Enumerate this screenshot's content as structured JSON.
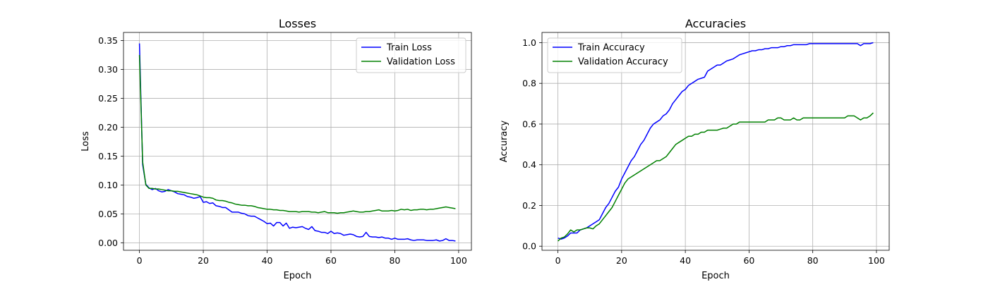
{
  "chart_data": [
    {
      "type": "line",
      "title": "Losses",
      "xlabel": "Epoch",
      "ylabel": "Loss",
      "xlim": [
        -5,
        104
      ],
      "ylim": [
        -0.013,
        0.364
      ],
      "xticks": [
        0,
        20,
        40,
        60,
        80,
        100
      ],
      "yticks": [
        0.0,
        0.05,
        0.1,
        0.15,
        0.2,
        0.25,
        0.3,
        0.35
      ],
      "ytick_labels": [
        "0.00",
        "0.05",
        "0.10",
        "0.15",
        "0.20",
        "0.25",
        "0.30",
        "0.35"
      ],
      "grid": true,
      "legend_position": "top-right",
      "series": [
        {
          "name": "Train Loss",
          "color": "#0000ff",
          "values": [
            0.345,
            0.135,
            0.101,
            0.095,
            0.092,
            0.094,
            0.09,
            0.088,
            0.089,
            0.092,
            0.09,
            0.088,
            0.085,
            0.084,
            0.083,
            0.08,
            0.079,
            0.077,
            0.078,
            0.08,
            0.07,
            0.071,
            0.068,
            0.069,
            0.064,
            0.063,
            0.061,
            0.061,
            0.057,
            0.053,
            0.053,
            0.053,
            0.051,
            0.05,
            0.047,
            0.046,
            0.046,
            0.043,
            0.04,
            0.037,
            0.033,
            0.034,
            0.029,
            0.035,
            0.035,
            0.029,
            0.034,
            0.025,
            0.027,
            0.026,
            0.027,
            0.028,
            0.025,
            0.023,
            0.028,
            0.021,
            0.02,
            0.018,
            0.018,
            0.016,
            0.02,
            0.016,
            0.017,
            0.016,
            0.013,
            0.014,
            0.015,
            0.014,
            0.011,
            0.01,
            0.011,
            0.018,
            0.011,
            0.01,
            0.01,
            0.009,
            0.01,
            0.008,
            0.008,
            0.006,
            0.008,
            0.006,
            0.006,
            0.006,
            0.007,
            0.005,
            0.004,
            0.005,
            0.005,
            0.005,
            0.004,
            0.004,
            0.004,
            0.005,
            0.003,
            0.004,
            0.007,
            0.004,
            0.004,
            0.003
          ]
        },
        {
          "name": "Validation Loss",
          "color": "#008000",
          "values": [
            0.325,
            0.14,
            0.1,
            0.094,
            0.094,
            0.093,
            0.093,
            0.092,
            0.091,
            0.09,
            0.09,
            0.089,
            0.089,
            0.088,
            0.087,
            0.086,
            0.085,
            0.084,
            0.083,
            0.081,
            0.079,
            0.078,
            0.078,
            0.077,
            0.074,
            0.073,
            0.073,
            0.072,
            0.07,
            0.069,
            0.067,
            0.066,
            0.065,
            0.065,
            0.064,
            0.064,
            0.063,
            0.061,
            0.06,
            0.059,
            0.058,
            0.058,
            0.057,
            0.057,
            0.056,
            0.056,
            0.055,
            0.054,
            0.054,
            0.054,
            0.053,
            0.054,
            0.054,
            0.054,
            0.053,
            0.053,
            0.052,
            0.053,
            0.054,
            0.052,
            0.052,
            0.052,
            0.051,
            0.052,
            0.052,
            0.053,
            0.054,
            0.055,
            0.054,
            0.053,
            0.053,
            0.054,
            0.054,
            0.055,
            0.056,
            0.057,
            0.055,
            0.055,
            0.055,
            0.056,
            0.055,
            0.056,
            0.058,
            0.057,
            0.058,
            0.056,
            0.057,
            0.057,
            0.058,
            0.058,
            0.057,
            0.058,
            0.058,
            0.059,
            0.06,
            0.061,
            0.062,
            0.061,
            0.06,
            0.059
          ]
        }
      ]
    },
    {
      "type": "line",
      "title": "Accuracies",
      "xlabel": "Epoch",
      "ylabel": "Accuracy",
      "xlim": [
        -5,
        104
      ],
      "ylim": [
        -0.02,
        1.05
      ],
      "xticks": [
        0,
        20,
        40,
        60,
        80,
        100
      ],
      "yticks": [
        0.0,
        0.2,
        0.4,
        0.6,
        0.8,
        1.0
      ],
      "ytick_labels": [
        "0.0",
        "0.2",
        "0.4",
        "0.6",
        "0.8",
        "1.0"
      ],
      "grid": true,
      "legend_position": "top-left",
      "series": [
        {
          "name": "Train Accuracy",
          "color": "#0000ff",
          "values": [
            0.04,
            0.035,
            0.04,
            0.05,
            0.065,
            0.065,
            0.065,
            0.08,
            0.085,
            0.09,
            0.1,
            0.11,
            0.12,
            0.13,
            0.16,
            0.19,
            0.21,
            0.24,
            0.27,
            0.29,
            0.33,
            0.36,
            0.39,
            0.42,
            0.44,
            0.47,
            0.5,
            0.52,
            0.55,
            0.58,
            0.6,
            0.61,
            0.62,
            0.64,
            0.65,
            0.67,
            0.7,
            0.72,
            0.74,
            0.76,
            0.77,
            0.79,
            0.8,
            0.81,
            0.82,
            0.825,
            0.83,
            0.86,
            0.87,
            0.88,
            0.89,
            0.89,
            0.9,
            0.91,
            0.915,
            0.92,
            0.93,
            0.94,
            0.945,
            0.95,
            0.955,
            0.96,
            0.96,
            0.965,
            0.965,
            0.97,
            0.97,
            0.975,
            0.975,
            0.975,
            0.98,
            0.98,
            0.985,
            0.985,
            0.99,
            0.99,
            0.99,
            0.99,
            0.99,
            0.995,
            0.995,
            0.995,
            0.995,
            0.995,
            0.995,
            0.995,
            0.995,
            0.995,
            0.995,
            0.995,
            0.995,
            0.995,
            0.995,
            0.995,
            0.995,
            0.985,
            0.995,
            0.995,
            0.995,
            1.0
          ]
        },
        {
          "name": "Validation Accuracy",
          "color": "#008000",
          "values": [
            0.025,
            0.04,
            0.045,
            0.06,
            0.08,
            0.07,
            0.08,
            0.08,
            0.085,
            0.09,
            0.09,
            0.085,
            0.1,
            0.11,
            0.13,
            0.15,
            0.17,
            0.19,
            0.22,
            0.25,
            0.28,
            0.31,
            0.33,
            0.34,
            0.35,
            0.36,
            0.37,
            0.38,
            0.39,
            0.4,
            0.41,
            0.42,
            0.42,
            0.43,
            0.44,
            0.46,
            0.48,
            0.5,
            0.51,
            0.52,
            0.53,
            0.54,
            0.54,
            0.55,
            0.55,
            0.56,
            0.56,
            0.57,
            0.57,
            0.57,
            0.57,
            0.575,
            0.58,
            0.58,
            0.59,
            0.6,
            0.6,
            0.61,
            0.61,
            0.61,
            0.61,
            0.61,
            0.61,
            0.61,
            0.61,
            0.61,
            0.62,
            0.62,
            0.62,
            0.63,
            0.63,
            0.62,
            0.62,
            0.62,
            0.63,
            0.62,
            0.62,
            0.63,
            0.63,
            0.63,
            0.63,
            0.63,
            0.63,
            0.63,
            0.63,
            0.63,
            0.63,
            0.63,
            0.63,
            0.63,
            0.63,
            0.64,
            0.64,
            0.64,
            0.63,
            0.62,
            0.63,
            0.63,
            0.64,
            0.655
          ]
        }
      ]
    }
  ]
}
